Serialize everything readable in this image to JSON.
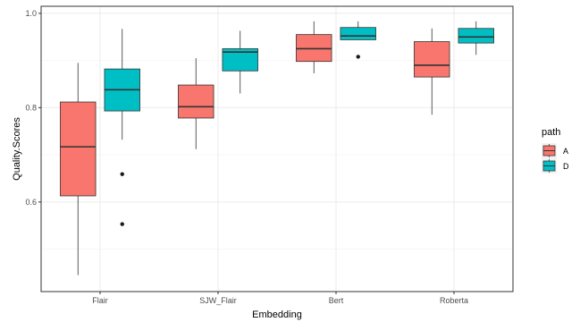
{
  "chart_data": {
    "type": "boxplot",
    "title": "",
    "xlabel": "Embedding",
    "ylabel": "Quality.Scores",
    "categories": [
      "Flair",
      "SJW_Flair",
      "Bert",
      "Roberta"
    ],
    "ylim": [
      0.41,
      1.015
    ],
    "yticks": [
      0.6,
      0.8,
      1.0
    ],
    "ytick_labels": [
      "0.6",
      "0.8",
      "1.0"
    ],
    "grid": true,
    "legend": {
      "title": "path",
      "position": "right"
    },
    "series": [
      {
        "name": "A",
        "color": "#F8766D",
        "boxes": [
          {
            "category": "Flair",
            "min": 0.445,
            "q1": 0.613,
            "median": 0.717,
            "q3": 0.812,
            "max": 0.895,
            "outliers": []
          },
          {
            "category": "SJW_Flair",
            "min": 0.712,
            "q1": 0.778,
            "median": 0.802,
            "q3": 0.848,
            "max": 0.905,
            "outliers": []
          },
          {
            "category": "Bert",
            "min": 0.873,
            "q1": 0.898,
            "median": 0.925,
            "q3": 0.955,
            "max": 0.983,
            "outliers": []
          },
          {
            "category": "Roberta",
            "min": 0.785,
            "q1": 0.865,
            "median": 0.89,
            "q3": 0.94,
            "max": 0.968,
            "outliers": []
          }
        ]
      },
      {
        "name": "D",
        "color": "#00BFC4",
        "boxes": [
          {
            "category": "Flair",
            "min": 0.732,
            "q1": 0.793,
            "median": 0.838,
            "q3": 0.882,
            "max": 0.967,
            "outliers": [
              0.659,
              0.553
            ]
          },
          {
            "category": "SJW_Flair",
            "min": 0.83,
            "q1": 0.878,
            "median": 0.918,
            "q3": 0.925,
            "max": 0.963,
            "outliers": []
          },
          {
            "category": "Bert",
            "min": 0.944,
            "q1": 0.944,
            "median": 0.952,
            "q3": 0.97,
            "max": 0.983,
            "outliers": [
              0.908
            ]
          },
          {
            "category": "Roberta",
            "min": 0.912,
            "q1": 0.937,
            "median": 0.95,
            "q3": 0.968,
            "max": 0.983,
            "outliers": []
          }
        ]
      }
    ]
  }
}
